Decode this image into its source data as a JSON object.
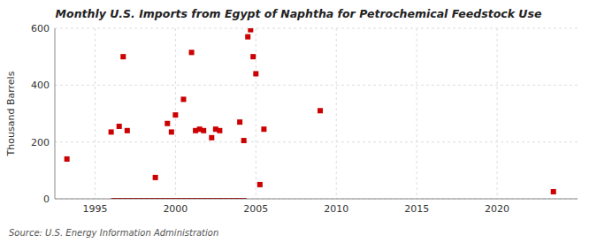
{
  "chart_data": {
    "type": "scatter",
    "title": "Monthly U.S. Imports from Egypt of Naphtha for Petrochemical Feedstock Use",
    "y_label": "Thousand Barrels",
    "source": "Source: U.S. Energy Information Administration",
    "xlim": [
      1992.5,
      2025
    ],
    "ylim": [
      0,
      600
    ],
    "xticks": [
      1995,
      2000,
      2005,
      2010,
      2015,
      2020
    ],
    "yticks": [
      0,
      200,
      400,
      600
    ],
    "grid": true,
    "series": [
      {
        "type": "scatter",
        "marker": "square",
        "color": "#cc0000",
        "x": [
          1993.25,
          1996.0,
          1996.5,
          1996.75,
          1997.0,
          1998.75,
          1999.5,
          1999.75,
          2000.0,
          2000.5,
          2001.0,
          2001.25,
          2001.5,
          2001.75,
          2002.25,
          2002.5,
          2002.75,
          2004.0,
          2004.25,
          2004.5,
          2004.67,
          2004.83,
          2005.0,
          2005.25,
          2005.5,
          2009.0,
          2023.5
        ],
        "values": [
          140,
          235,
          255,
          500,
          240,
          75,
          265,
          235,
          295,
          350,
          515,
          240,
          245,
          240,
          215,
          245,
          240,
          270,
          205,
          570,
          595,
          500,
          440,
          50,
          245,
          310,
          25
        ]
      },
      {
        "type": "band",
        "color": "#8b0000",
        "x_start": [
          1996.0
        ],
        "x_end": [
          2004.42
        ],
        "values": [
          0
        ],
        "height": [
          5
        ]
      }
    ]
  }
}
